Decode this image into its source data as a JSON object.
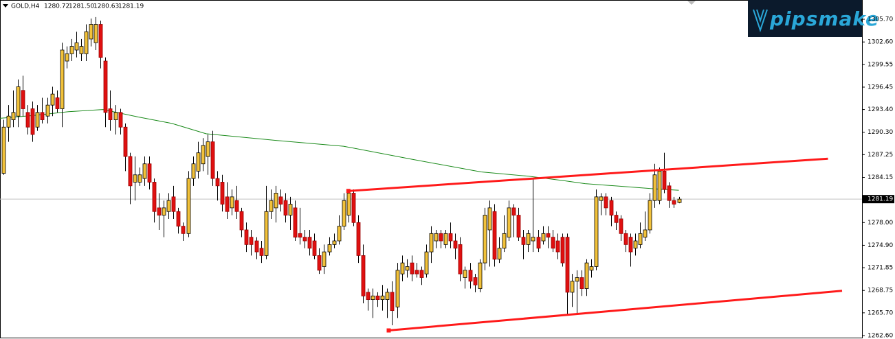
{
  "chart_data": {
    "type": "candlestick",
    "header": {
      "symbol": "GOLD,H4",
      "ohlc": [
        "1280.72",
        "1281.50",
        "1280.63",
        "1281.19"
      ]
    },
    "logo": "pipsmake",
    "bull_color": "#f2c23a",
    "bear_color": "#e01010",
    "wick_color": "#000000",
    "xlim": [
      -0.7,
      176.7
    ],
    "ylim": [
      1262.32,
      1308.32
    ],
    "yticks": [
      {
        "value": 1305.7,
        "label": "1305.70"
      },
      {
        "value": 1302.6,
        "label": "1302.60"
      },
      {
        "value": 1299.55,
        "label": "1299.55"
      },
      {
        "value": 1296.45,
        "label": "1296.45"
      },
      {
        "value": 1293.4,
        "label": "1293.40"
      },
      {
        "value": 1290.3,
        "label": "1290.30"
      },
      {
        "value": 1287.25,
        "label": "1287.25"
      },
      {
        "value": 1284.15,
        "label": "1284.15"
      },
      {
        "value": 1278,
        "label": "1278.00"
      },
      {
        "value": 1274.9,
        "label": "1274.90"
      },
      {
        "value": 1271.85,
        "label": "1271.85"
      },
      {
        "value": 1268.75,
        "label": "1268.75"
      },
      {
        "value": 1265.7,
        "label": "1265.70"
      },
      {
        "value": 1262.6,
        "label": "1262.60"
      }
    ],
    "current_price": {
      "value": 1281.19,
      "label": "1281.19",
      "color": "#c0c0c0"
    },
    "candles": {
      "open": [
        1284.7,
        1291,
        1292,
        1292.5,
        1296,
        1293,
        1293.5,
        1291,
        1293,
        1292.5,
        1294,
        1295,
        1293.5,
        1300,
        1301,
        1301.5,
        1301,
        1301,
        1303,
        1302.5,
        1305,
        1300,
        1293.5,
        1292,
        1293,
        1291,
        1287,
        1283.5,
        1283.5,
        1284,
        1286,
        1283.5,
        1280,
        1279,
        1279.5,
        1281.5,
        1279.5,
        1277.5,
        1276.5,
        1284,
        1285,
        1286,
        1287,
        1289,
        1284,
        1283.5,
        1281.5,
        1280,
        1281,
        1279.5,
        1277,
        1276,
        1275.5,
        1274.5,
        1273.5,
        1279.5,
        1280,
        1281.5,
        1281,
        1279,
        1280,
        1276.5,
        1276,
        1276,
        1275.5,
        1273.5,
        1272,
        1274,
        1275,
        1275.5,
        1277.5,
        1279,
        1282,
        1278,
        1273.5,
        1268.5,
        1267.5,
        1268,
        1267.5,
        1267.5,
        1268.5,
        1266.5,
        1271,
        1271.5,
        1272.5,
        1271.5,
        1271.5,
        1271,
        1274,
        1275.5,
        1276.5,
        1275,
        1276.5,
        1275.5,
        1275,
        1270.5,
        1271.5,
        1270.5,
        1269,
        1272.5,
        1277,
        1279.5,
        1273,
        1274.5,
        1276,
        1280,
        1279,
        1276,
        1275,
        1275.5,
        1276,
        1275.5,
        1276.5,
        1276,
        1275.5,
        1276,
        1276,
        1268.5,
        1270,
        1270.5,
        1269,
        1271.5,
        1272,
        1281,
        1281.5,
        1281,
        1279,
        1278.5,
        1276.5,
        1276,
        1274.5,
        1275,
        1276,
        1277,
        1281,
        1281,
        1285,
        1283,
        1281,
        1280.72
      ],
      "high": [
        1292,
        1294,
        1296,
        1297.5,
        1298,
        1294,
        1294.5,
        1294,
        1295,
        1295,
        1296.5,
        1296,
        1302.5,
        1302,
        1303,
        1304,
        1303,
        1305,
        1305.8,
        1306,
        1305.5,
        1300.5,
        1296,
        1294,
        1293.5,
        1291.5,
        1287.5,
        1287,
        1285.5,
        1287,
        1287,
        1284,
        1282,
        1281,
        1282,
        1283,
        1280,
        1278,
        1285,
        1287,
        1289,
        1289.5,
        1290,
        1290.5,
        1285,
        1284.5,
        1283.5,
        1282.5,
        1283,
        1280,
        1278,
        1277,
        1276,
        1275.5,
        1283,
        1282.5,
        1283,
        1282.5,
        1282,
        1281.5,
        1281,
        1280,
        1277,
        1277,
        1276.5,
        1274.5,
        1275,
        1276,
        1276.5,
        1279,
        1282,
        1282.5,
        1282.5,
        1279,
        1275,
        1269,
        1269,
        1268.5,
        1269.5,
        1269,
        1270,
        1272.5,
        1273.5,
        1273,
        1273.5,
        1272.5,
        1272,
        1275,
        1277.5,
        1277,
        1277,
        1277,
        1278,
        1276.5,
        1276,
        1272,
        1272.5,
        1271,
        1273,
        1280,
        1281,
        1280.5,
        1276,
        1279,
        1281,
        1280.5,
        1280,
        1277,
        1277,
        1284,
        1277,
        1277.5,
        1277.5,
        1277,
        1276.5,
        1276.5,
        1276.5,
        1271,
        1271.5,
        1271.5,
        1273,
        1273,
        1282.5,
        1282,
        1282,
        1281.5,
        1279.5,
        1279,
        1277,
        1276.5,
        1276.5,
        1278,
        1279.5,
        1282,
        1286,
        1285.5,
        1287.5,
        1283.5,
        1281.5,
        1281.5
      ],
      "low": [
        1284.5,
        1289,
        1291,
        1291,
        1292.5,
        1290,
        1289,
        1290.5,
        1291.5,
        1291.5,
        1292.5,
        1293,
        1291,
        1299,
        1300,
        1300.5,
        1300,
        1300,
        1302,
        1301.5,
        1299,
        1291,
        1290.5,
        1290,
        1290,
        1285,
        1280.5,
        1281,
        1283,
        1283,
        1282.5,
        1278,
        1277,
        1276,
        1278.5,
        1278.5,
        1276.5,
        1275.5,
        1276,
        1283,
        1284,
        1285,
        1284.5,
        1283,
        1281,
        1279.5,
        1278.5,
        1279,
        1278.5,
        1276,
        1274,
        1273.5,
        1273,
        1272.5,
        1273,
        1278.5,
        1278,
        1279.5,
        1278,
        1277,
        1275.5,
        1275,
        1274.5,
        1273.5,
        1273,
        1271,
        1271,
        1273.5,
        1274.5,
        1275,
        1277,
        1278,
        1277.5,
        1272.5,
        1267,
        1266,
        1265,
        1266.5,
        1266,
        1265,
        1264,
        1265,
        1270,
        1270.5,
        1270,
        1270.5,
        1269.5,
        1270.5,
        1272.5,
        1274.5,
        1274.5,
        1274.5,
        1274.5,
        1273,
        1270,
        1269,
        1269,
        1268.5,
        1268.5,
        1271.5,
        1272,
        1272,
        1272.5,
        1274,
        1275.5,
        1276,
        1275.5,
        1273,
        1274,
        1274,
        1274,
        1275,
        1274.5,
        1274,
        1273,
        1272,
        1265.5,
        1266.5,
        1265.5,
        1268,
        1268,
        1270.5,
        1271.5,
        1279,
        1279,
        1277.5,
        1277,
        1275.5,
        1274,
        1272,
        1273.5,
        1274.5,
        1275.5,
        1276.5,
        1280,
        1280.5,
        1282,
        1280,
        1280,
        1280.63
      ],
      "close": [
        1291,
        1292.5,
        1293,
        1296.5,
        1293.5,
        1291,
        1290,
        1293,
        1292,
        1294,
        1295.5,
        1293.5,
        1301.5,
        1301,
        1302,
        1302.5,
        1302,
        1304,
        1305,
        1305,
        1300.5,
        1293,
        1292,
        1293,
        1291,
        1287,
        1283,
        1284.5,
        1284.5,
        1286,
        1283.5,
        1279.5,
        1279,
        1280,
        1281,
        1279.5,
        1277.5,
        1276.5,
        1284,
        1286,
        1287.5,
        1288.5,
        1289,
        1284,
        1283,
        1280.5,
        1279.5,
        1281.5,
        1279.5,
        1277,
        1275,
        1275,
        1274,
        1273.5,
        1279.5,
        1281,
        1282,
        1280.5,
        1279,
        1280.5,
        1276,
        1276,
        1275.5,
        1274.5,
        1273.5,
        1271.5,
        1274,
        1275,
        1275.5,
        1277.5,
        1281,
        1282,
        1278,
        1273.5,
        1268,
        1267.5,
        1268,
        1267.5,
        1268,
        1268.5,
        1266,
        1271.5,
        1272.5,
        1272,
        1271,
        1271,
        1270.5,
        1274,
        1276.5,
        1276.5,
        1275.5,
        1276.5,
        1275.5,
        1274.5,
        1271,
        1271.5,
        1270,
        1269.5,
        1272.5,
        1279,
        1280,
        1273,
        1274.5,
        1276.5,
        1280,
        1279,
        1276,
        1275,
        1276.5,
        1276,
        1274.5,
        1276.5,
        1276,
        1274.5,
        1274,
        1272.5,
        1268.5,
        1270,
        1270.5,
        1269,
        1272.5,
        1272,
        1281.5,
        1281.5,
        1280,
        1279,
        1278,
        1276.5,
        1275,
        1274,
        1275.5,
        1276.5,
        1277,
        1281,
        1284.5,
        1285,
        1282.5,
        1281,
        1280.5,
        1281.19
      ]
    },
    "moving_average": {
      "color": "#1a8a1a",
      "x": [
        -0.7,
        6.4,
        13.4,
        20.5,
        27.6,
        34.7,
        41.7,
        55.9,
        70.0,
        84.2,
        98.3,
        108.2,
        115.3,
        119.7,
        133.9,
        139
      ],
      "values": [
        1292.2,
        1292.6,
        1293.1,
        1293.4,
        1292.4,
        1291.5,
        1290.1,
        1289.2,
        1288.4,
        1286.6,
        1284.9,
        1284.3,
        1283.7,
        1283.3,
        1282.6,
        1282.4
      ]
    },
    "trend_lines": {
      "color": "#ff1a1a",
      "lines": [
        {
          "x": [
            71.0,
            169.7
          ],
          "values": [
            1282.3,
            1286.7
          ]
        },
        {
          "x": [
            79.3,
            172.6
          ],
          "values": [
            1263.3,
            1268.7
          ]
        }
      ]
    }
  }
}
